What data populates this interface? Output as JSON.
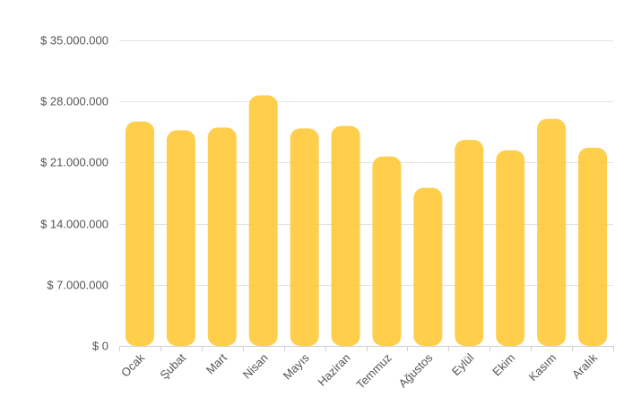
{
  "chart_data": {
    "type": "bar",
    "title": "",
    "xlabel": "",
    "ylabel": "",
    "categories": [
      "Ocak",
      "Şubat",
      "Mart",
      "Nisan",
      "Mayıs",
      "Haziran",
      "Temmuz",
      "Ağustos",
      "Eylül",
      "Ekim",
      "Kasım",
      "Aralık"
    ],
    "values": [
      25700000,
      24700000,
      25000000,
      28700000,
      24900000,
      25200000,
      21700000,
      18100000,
      23600000,
      22400000,
      26000000,
      22700000
    ],
    "ylim": [
      0,
      35000000
    ],
    "y_ticks": [
      0,
      7000000,
      14000000,
      21000000,
      28000000,
      35000000
    ],
    "y_tick_labels": [
      "$ 0",
      "$ 7.000.000",
      "$ 14.000.000",
      "$ 21.000.000",
      "$ 28.000.000",
      "$ 35.000.000"
    ],
    "grid": true,
    "legend": "none",
    "bar_color": "#FFC732"
  }
}
